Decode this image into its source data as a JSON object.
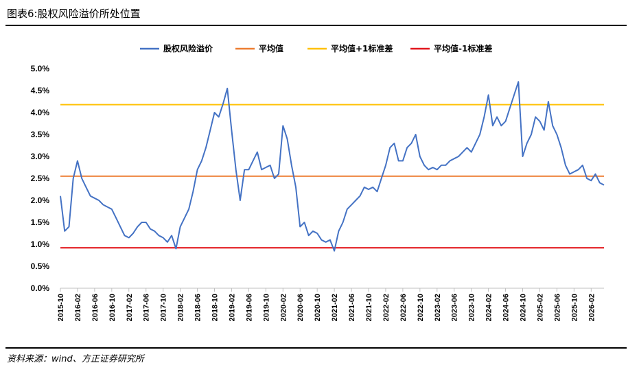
{
  "figure": {
    "title": "图表6:股权风险溢价所处位置",
    "source": "资料来源：wind、方正证券研究所"
  },
  "chart_data": {
    "type": "line",
    "y_unit": "%",
    "ylim": [
      0,
      5
    ],
    "yticks": [
      "0.0%",
      "0.5%",
      "1.0%",
      "1.5%",
      "2.0%",
      "2.5%",
      "3.0%",
      "3.5%",
      "4.0%",
      "4.5%",
      "5.0%"
    ],
    "xticks": [
      "2015-10",
      "2016-02",
      "2016-06",
      "2016-10",
      "2017-02",
      "2017-06",
      "2017-10",
      "2018-02",
      "2018-06",
      "2018-10",
      "2019-02",
      "2019-06",
      "2019-10",
      "2020-02",
      "2020-06",
      "2020-10",
      "2021-02",
      "2021-06",
      "2021-10",
      "2022-02",
      "2022-06",
      "2022-10",
      "2023-02",
      "2023-06",
      "2023-10",
      "2024-02",
      "2024-06",
      "2024-10",
      "2025-02",
      "2025-06",
      "2025-10",
      "2026-02"
    ],
    "grid": false,
    "legend_position": "top",
    "series": [
      {
        "name": "股权风险溢价",
        "color": "#4472C4",
        "kind": "line",
        "points": [
          [
            "2015-10",
            2.1
          ],
          [
            "2015-11",
            1.3
          ],
          [
            "2015-12",
            1.4
          ],
          [
            "2016-01",
            2.5
          ],
          [
            "2016-02",
            2.9
          ],
          [
            "2016-03",
            2.5
          ],
          [
            "2016-04",
            2.3
          ],
          [
            "2016-05",
            2.1
          ],
          [
            "2016-06",
            2.05
          ],
          [
            "2016-07",
            2.0
          ],
          [
            "2016-08",
            1.9
          ],
          [
            "2016-09",
            1.85
          ],
          [
            "2016-10",
            1.8
          ],
          [
            "2016-11",
            1.6
          ],
          [
            "2016-12",
            1.4
          ],
          [
            "2017-01",
            1.2
          ],
          [
            "2017-02",
            1.15
          ],
          [
            "2017-03",
            1.25
          ],
          [
            "2017-04",
            1.4
          ],
          [
            "2017-05",
            1.5
          ],
          [
            "2017-06",
            1.5
          ],
          [
            "2017-07",
            1.35
          ],
          [
            "2017-08",
            1.3
          ],
          [
            "2017-09",
            1.2
          ],
          [
            "2017-10",
            1.15
          ],
          [
            "2017-11",
            1.05
          ],
          [
            "2017-12",
            1.2
          ],
          [
            "2018-01",
            0.9
          ],
          [
            "2018-02",
            1.4
          ],
          [
            "2018-03",
            1.6
          ],
          [
            "2018-04",
            1.8
          ],
          [
            "2018-05",
            2.2
          ],
          [
            "2018-06",
            2.7
          ],
          [
            "2018-07",
            2.9
          ],
          [
            "2018-08",
            3.2
          ],
          [
            "2018-09",
            3.6
          ],
          [
            "2018-10",
            4.0
          ],
          [
            "2018-11",
            3.9
          ],
          [
            "2018-12",
            4.2
          ],
          [
            "2019-01",
            4.55
          ],
          [
            "2019-02",
            3.6
          ],
          [
            "2019-03",
            2.7
          ],
          [
            "2019-04",
            2.0
          ],
          [
            "2019-05",
            2.7
          ],
          [
            "2019-06",
            2.7
          ],
          [
            "2019-07",
            2.9
          ],
          [
            "2019-08",
            3.1
          ],
          [
            "2019-09",
            2.7
          ],
          [
            "2019-10",
            2.75
          ],
          [
            "2019-11",
            2.8
          ],
          [
            "2019-12",
            2.5
          ],
          [
            "2020-01",
            2.6
          ],
          [
            "2020-02",
            3.7
          ],
          [
            "2020-03",
            3.4
          ],
          [
            "2020-04",
            2.8
          ],
          [
            "2020-05",
            2.3
          ],
          [
            "2020-06",
            1.4
          ],
          [
            "2020-07",
            1.5
          ],
          [
            "2020-08",
            1.2
          ],
          [
            "2020-09",
            1.3
          ],
          [
            "2020-10",
            1.25
          ],
          [
            "2020-11",
            1.1
          ],
          [
            "2020-12",
            1.05
          ],
          [
            "2021-01",
            1.1
          ],
          [
            "2021-02",
            0.85
          ],
          [
            "2021-03",
            1.3
          ],
          [
            "2021-04",
            1.5
          ],
          [
            "2021-05",
            1.8
          ],
          [
            "2021-06",
            1.9
          ],
          [
            "2021-07",
            2.0
          ],
          [
            "2021-08",
            2.1
          ],
          [
            "2021-09",
            2.3
          ],
          [
            "2021-10",
            2.25
          ],
          [
            "2021-11",
            2.3
          ],
          [
            "2021-12",
            2.2
          ],
          [
            "2022-01",
            2.5
          ],
          [
            "2022-02",
            2.8
          ],
          [
            "2022-03",
            3.2
          ],
          [
            "2022-04",
            3.3
          ],
          [
            "2022-05",
            2.9
          ],
          [
            "2022-06",
            2.9
          ],
          [
            "2022-07",
            3.2
          ],
          [
            "2022-08",
            3.3
          ],
          [
            "2022-09",
            3.5
          ],
          [
            "2022-10",
            3.0
          ],
          [
            "2022-11",
            2.8
          ],
          [
            "2022-12",
            2.7
          ],
          [
            "2023-01",
            2.75
          ],
          [
            "2023-02",
            2.7
          ],
          [
            "2023-03",
            2.8
          ],
          [
            "2023-04",
            2.8
          ],
          [
            "2023-05",
            2.9
          ],
          [
            "2023-06",
            2.95
          ],
          [
            "2023-07",
            3.0
          ],
          [
            "2023-08",
            3.1
          ],
          [
            "2023-09",
            3.2
          ],
          [
            "2023-10",
            3.1
          ],
          [
            "2023-11",
            3.3
          ],
          [
            "2023-12",
            3.5
          ],
          [
            "2024-01",
            3.9
          ],
          [
            "2024-02",
            4.4
          ],
          [
            "2024-03",
            3.7
          ],
          [
            "2024-04",
            3.9
          ],
          [
            "2024-05",
            3.7
          ],
          [
            "2024-06",
            3.8
          ],
          [
            "2024-07",
            4.1
          ],
          [
            "2024-08",
            4.4
          ],
          [
            "2024-09",
            4.7
          ],
          [
            "2024-10",
            3.0
          ],
          [
            "2024-11",
            3.3
          ],
          [
            "2024-12",
            3.5
          ],
          [
            "2025-01",
            3.9
          ],
          [
            "2025-02",
            3.8
          ],
          [
            "2025-03",
            3.6
          ],
          [
            "2025-04",
            4.25
          ],
          [
            "2025-05",
            3.7
          ],
          [
            "2025-06",
            3.5
          ],
          [
            "2025-07",
            3.2
          ],
          [
            "2025-08",
            2.8
          ],
          [
            "2025-09",
            2.6
          ],
          [
            "2025-10",
            2.65
          ],
          [
            "2025-11",
            2.7
          ],
          [
            "2025-12",
            2.8
          ],
          [
            "2026-01",
            2.5
          ],
          [
            "2026-02",
            2.45
          ],
          [
            "2026-03",
            2.6
          ],
          [
            "2026-04",
            2.4
          ],
          [
            "2026-05",
            2.35
          ]
        ]
      },
      {
        "name": "平均值",
        "color": "#ED7D31",
        "kind": "hline",
        "value": 2.55
      },
      {
        "name": "平均值+1标准差",
        "color": "#FFC000",
        "kind": "hline",
        "value": 4.18
      },
      {
        "name": "平均值-1标准差",
        "color": "#E2161C",
        "kind": "hline",
        "value": 0.92
      }
    ]
  }
}
